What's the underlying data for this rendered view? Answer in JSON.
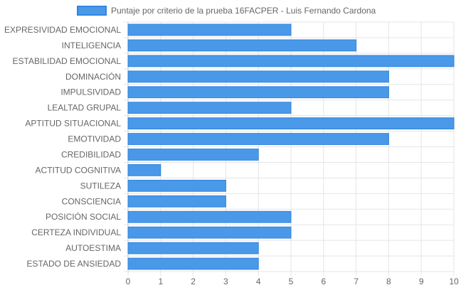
{
  "chart_data": {
    "type": "bar",
    "orientation": "horizontal",
    "legend": {
      "label": "Puntaje por criterio de la prueba 16FACPER - Luis Fernando Cardona",
      "position": "top"
    },
    "categories": [
      "EXPRESIVIDAD EMOCIONAL",
      "INTELIGENCIA",
      "ESTABILIDAD EMOCIONAL",
      "DOMINACIÓN",
      "IMPULSIVIDAD",
      "LEALTAD GRUPAL",
      "APTITUD SITUACIONAL",
      "EMOTIVIDAD",
      "CREDIBILIDAD",
      "ACTITUD COGNITIVA",
      "SUTILEZA",
      "CONSCIENCIA",
      "POSICIÓN SOCIAL",
      "CERTEZA INDIVIDUAL",
      "AUTOESTIMA",
      "ESTADO DE ANSIEDAD"
    ],
    "series": [
      {
        "name": "Puntaje por criterio de la prueba 16FACPER - Luis Fernando Cardona",
        "values": [
          5,
          7,
          10,
          8,
          8,
          5,
          10,
          8,
          4,
          1,
          3,
          3,
          5,
          5,
          4,
          4
        ]
      }
    ],
    "xlim": [
      0,
      10
    ],
    "xticks": [
      "0",
      "1",
      "2",
      "3",
      "4",
      "5",
      "6",
      "7",
      "8",
      "9",
      "10"
    ],
    "grid": true,
    "colors": {
      "bar_fill": "#4a98e8",
      "bar_border": "#2f86e0",
      "grid": "#e5e5e5",
      "text": "#666666"
    }
  }
}
